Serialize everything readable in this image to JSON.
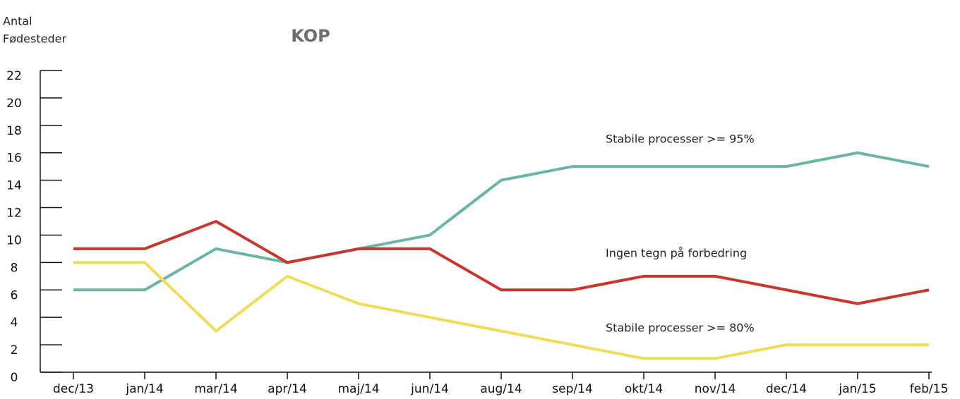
{
  "chart_data": {
    "type": "line",
    "title": "KOP",
    "y_label": [
      "Antal",
      "Fødesteder"
    ],
    "categories": [
      "dec/13",
      "jan/14",
      "mar/14",
      "apr/14",
      "maj/14",
      "jun/14",
      "aug/14",
      "sep/14",
      "okt/14",
      "nov/14",
      "dec/14",
      "jan/15",
      "feb/15"
    ],
    "series": [
      {
        "name": "Stabile processer >= 95%",
        "color": "#6ab5a5",
        "values": [
          6,
          6,
          9,
          8,
          9,
          10,
          14,
          15,
          15,
          15,
          15,
          16,
          15
        ]
      },
      {
        "name": "Ingen tegn på forbedring",
        "color": "#c8372d",
        "values": [
          9,
          9,
          11,
          8,
          9,
          9,
          6,
          6,
          7,
          7,
          6,
          5,
          6
        ]
      },
      {
        "name": "Stabile processer >= 80%",
        "color": "#eedd5a",
        "values": [
          8,
          8,
          3,
          7,
          5,
          4,
          3,
          2,
          1,
          1,
          2,
          2,
          2
        ]
      }
    ],
    "ylim": [
      0,
      22
    ],
    "yticks": [
      0,
      2,
      4,
      6,
      8,
      10,
      12,
      14,
      16,
      18,
      20,
      22
    ],
    "grid": false
  }
}
